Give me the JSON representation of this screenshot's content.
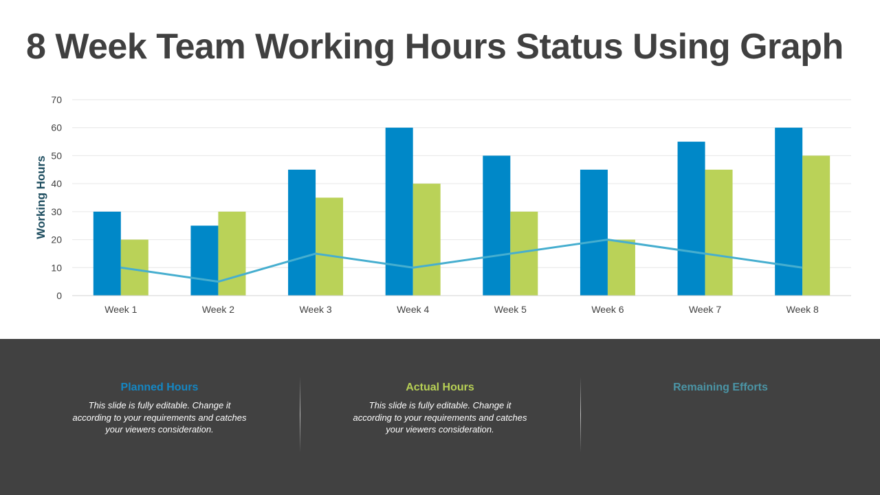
{
  "slide": {
    "title": "8 Week Team Working Hours Status Using Graph"
  },
  "legend_panels": [
    {
      "heading": "Planned Hours",
      "color": "#1487C4",
      "body": "This slide is fully editable. Change it according to your requirements and catches your viewers consideration."
    },
    {
      "heading": "Actual Hours",
      "color": "#B7D055",
      "body": "This slide is fully editable. Change it according to your requirements and catches your viewers consideration."
    },
    {
      "heading": "Remaining Efforts",
      "color": "#4B95A6",
      "body": ""
    }
  ],
  "chart_data": {
    "type": "bar",
    "title": "",
    "xlabel": "",
    "ylabel": "Working Hours",
    "ylim": [
      0,
      70
    ],
    "yticks": [
      0,
      10,
      20,
      30,
      40,
      50,
      60,
      70
    ],
    "grid": true,
    "legend_position": "none",
    "categories": [
      "Week 1",
      "Week 2",
      "Week 3",
      "Week 4",
      "Week 5",
      "Week 6",
      "Week 7",
      "Week 8"
    ],
    "series": [
      {
        "name": "Planned Hours",
        "type": "bar",
        "color": "#0088C8",
        "values": [
          30,
          25,
          45,
          60,
          50,
          45,
          55,
          60
        ]
      },
      {
        "name": "Actual Hours",
        "type": "bar",
        "color": "#BAD258",
        "values": [
          20,
          30,
          35,
          40,
          30,
          20,
          45,
          50
        ]
      },
      {
        "name": "Remaining Efforts",
        "type": "line",
        "color": "#46AECF",
        "values": [
          10,
          5,
          15,
          10,
          15,
          20,
          15,
          10
        ]
      }
    ]
  }
}
